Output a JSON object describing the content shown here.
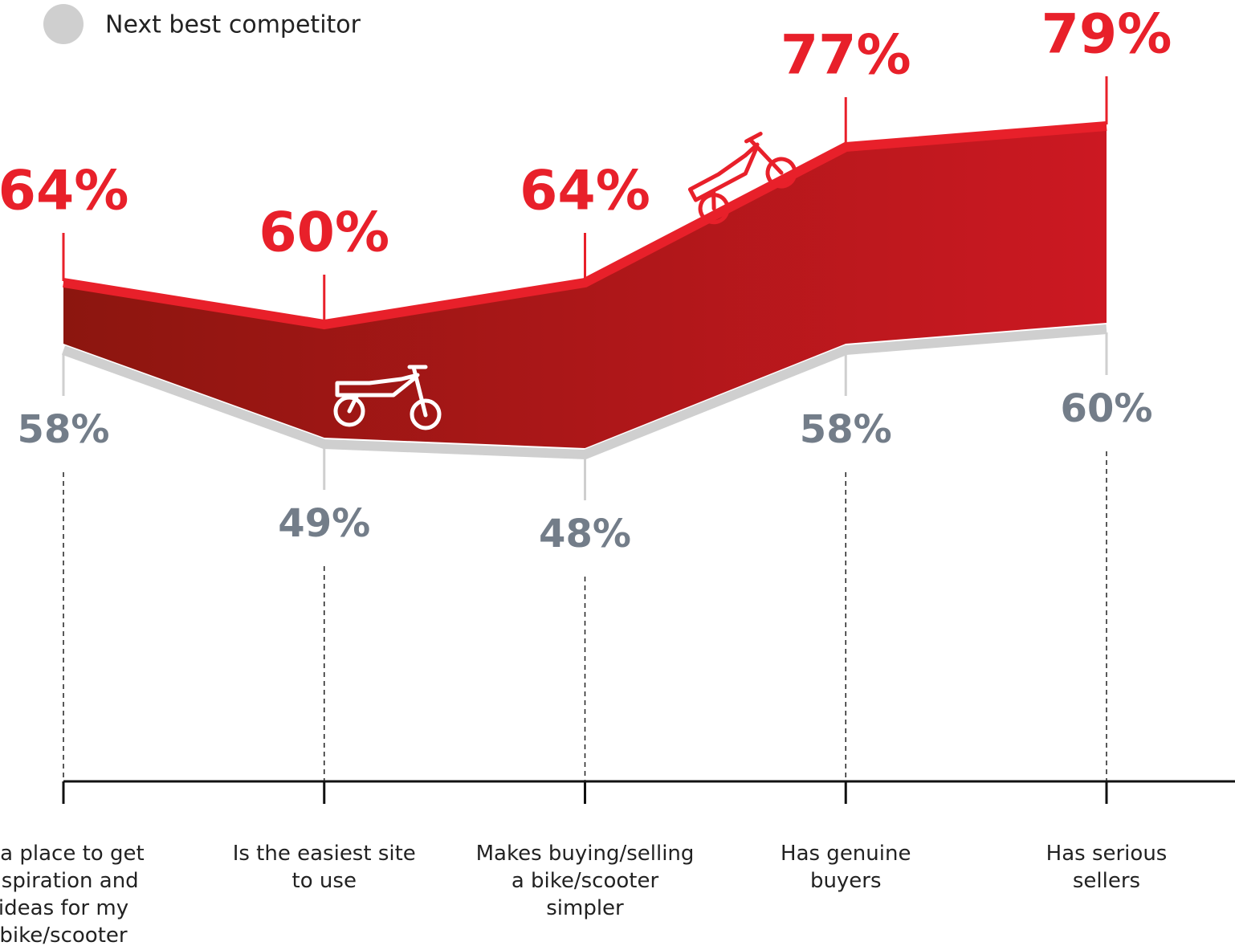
{
  "chart_data": {
    "type": "band",
    "categories": [
      "s a place to get\nnspiration and\nideas for my\nbike/scooter",
      "Is the easiest site\nto use",
      "Makes buying/selling\na bike/scooter\nsimpler",
      "Has genuine\nbuyers",
      "Has serious\nsellers"
    ],
    "series": [
      {
        "color": "#e8202a",
        "values": [
          64,
          60,
          64,
          77,
          79
        ],
        "value_labels": [
          "64%",
          "60%",
          "64%",
          "77%",
          "79%"
        ]
      },
      {
        "name": "Next best competitor",
        "color": "#cfcfcf",
        "values": [
          58,
          49,
          48,
          58,
          60
        ],
        "value_labels": [
          "58%",
          "49%",
          "48%",
          "58%",
          "60%"
        ]
      }
    ]
  }
}
